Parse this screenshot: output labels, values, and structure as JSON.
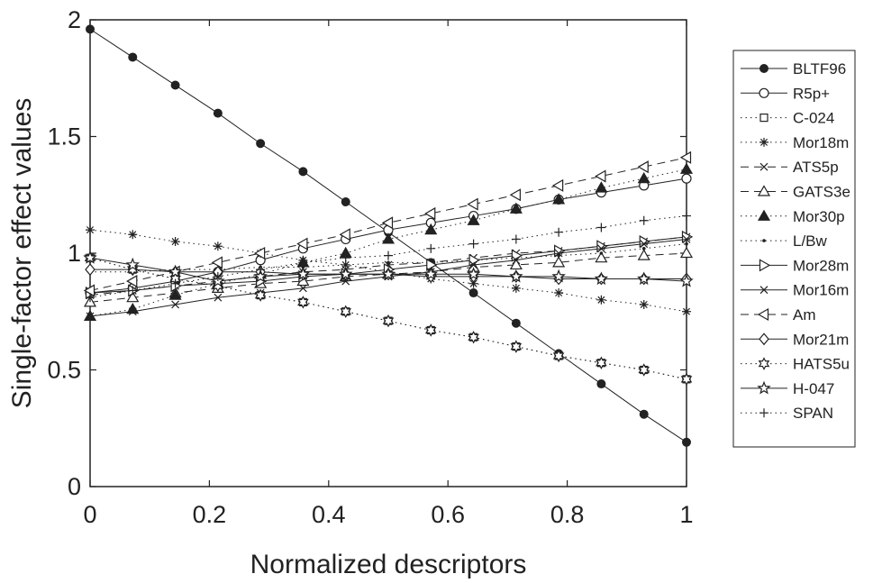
{
  "chart_data": {
    "type": "line",
    "xlabel": "Normalized descriptors",
    "ylabel": "Single-factor effect values",
    "xlim": [
      0,
      1
    ],
    "ylim": [
      0,
      2
    ],
    "x_ticks": [
      "0",
      "0.2",
      "0.4",
      "0.6",
      "0.8",
      "1"
    ],
    "y_ticks": [
      "0",
      "0.5",
      "1",
      "1.5",
      "2"
    ],
    "grid": false,
    "legend_position": "right",
    "x": [
      0,
      0.0714,
      0.1429,
      0.2143,
      0.2857,
      0.3571,
      0.4286,
      0.5,
      0.5714,
      0.6429,
      0.7143,
      0.7857,
      0.8571,
      0.9286,
      1
    ],
    "series": [
      {
        "name": "BLTF96",
        "marker": "filled-circle",
        "line": "solid",
        "values": [
          1.96,
          1.84,
          1.72,
          1.6,
          1.47,
          1.35,
          1.22,
          1.09,
          0.96,
          0.83,
          0.7,
          0.57,
          0.44,
          0.31,
          0.19
        ]
      },
      {
        "name": "R5p+",
        "marker": "open-circle",
        "line": "solid",
        "values": [
          0.83,
          0.85,
          0.88,
          0.92,
          0.97,
          1.02,
          1.06,
          1.1,
          1.13,
          1.16,
          1.19,
          1.23,
          1.26,
          1.29,
          1.32
        ]
      },
      {
        "name": "C-024",
        "marker": "square",
        "line": "dotted",
        "values": [
          0.98,
          0.93,
          0.89,
          0.86,
          0.82,
          0.79,
          0.75,
          0.71,
          0.67,
          0.64,
          0.6,
          0.56,
          0.53,
          0.5,
          0.46
        ]
      },
      {
        "name": "Mor18m",
        "marker": "star",
        "line": "dotted",
        "values": [
          1.1,
          1.08,
          1.05,
          1.03,
          1.0,
          0.97,
          0.95,
          0.92,
          0.89,
          0.87,
          0.85,
          0.83,
          0.8,
          0.78,
          0.75
        ]
      },
      {
        "name": "ATS5p",
        "marker": "x",
        "line": "dashed",
        "values": [
          0.82,
          0.84,
          0.86,
          0.88,
          0.9,
          0.92,
          0.93,
          0.95,
          0.96,
          0.98,
          1.0,
          1.01,
          1.03,
          1.05,
          1.07
        ]
      },
      {
        "name": "GATS3e",
        "marker": "triangle-up",
        "line": "dashed",
        "values": [
          0.79,
          0.81,
          0.83,
          0.85,
          0.87,
          0.88,
          0.9,
          0.91,
          0.92,
          0.94,
          0.95,
          0.96,
          0.98,
          0.99,
          1.0
        ]
      },
      {
        "name": "Mor30p",
        "marker": "filled-triangle",
        "line": "dotted",
        "values": [
          0.73,
          0.76,
          0.82,
          0.87,
          0.91,
          0.96,
          1.0,
          1.06,
          1.1,
          1.14,
          1.19,
          1.23,
          1.28,
          1.32,
          1.36
        ]
      },
      {
        "name": "L/Bw",
        "marker": "dot",
        "line": "dotted",
        "values": [
          0.92,
          0.92,
          0.93,
          0.93,
          0.94,
          0.94,
          0.95,
          0.96,
          0.96,
          0.97,
          0.98,
          0.99,
          1.0,
          1.02,
          1.04
        ]
      },
      {
        "name": "Mor28m",
        "marker": "triangle-right",
        "line": "solid",
        "values": [
          0.83,
          0.84,
          0.86,
          0.87,
          0.88,
          0.9,
          0.91,
          0.93,
          0.95,
          0.97,
          0.99,
          1.01,
          1.03,
          1.05,
          1.07
        ]
      },
      {
        "name": "Mor16m",
        "marker": "x",
        "line": "solid",
        "values": [
          0.73,
          0.75,
          0.78,
          0.81,
          0.83,
          0.85,
          0.88,
          0.9,
          0.92,
          0.95,
          0.97,
          1.0,
          1.02,
          1.04,
          1.06
        ]
      },
      {
        "name": "Am",
        "marker": "triangle-left",
        "line": "dashed",
        "values": [
          0.84,
          0.88,
          0.92,
          0.96,
          1.0,
          1.04,
          1.08,
          1.13,
          1.17,
          1.21,
          1.25,
          1.29,
          1.33,
          1.37,
          1.41
        ]
      },
      {
        "name": "Mor21m",
        "marker": "diamond",
        "line": "solid",
        "values": [
          0.93,
          0.93,
          0.92,
          0.92,
          0.92,
          0.91,
          0.91,
          0.91,
          0.9,
          0.9,
          0.9,
          0.89,
          0.89,
          0.89,
          0.89
        ]
      },
      {
        "name": "HATS5u",
        "marker": "hexagram",
        "line": "dotted",
        "values": [
          0.98,
          0.93,
          0.89,
          0.86,
          0.82,
          0.79,
          0.75,
          0.71,
          0.67,
          0.64,
          0.6,
          0.56,
          0.53,
          0.5,
          0.46
        ]
      },
      {
        "name": "H-047",
        "marker": "pentagram",
        "line": "solid",
        "values": [
          0.98,
          0.95,
          0.92,
          0.88,
          0.9,
          0.91,
          0.91,
          0.91,
          0.91,
          0.91,
          0.9,
          0.9,
          0.89,
          0.89,
          0.88
        ]
      },
      {
        "name": "SPAN",
        "marker": "plus",
        "line": "dotted",
        "values": [
          0.81,
          0.84,
          0.87,
          0.9,
          0.93,
          0.96,
          0.98,
          0.99,
          1.02,
          1.04,
          1.06,
          1.09,
          1.11,
          1.14,
          1.16
        ]
      }
    ]
  }
}
